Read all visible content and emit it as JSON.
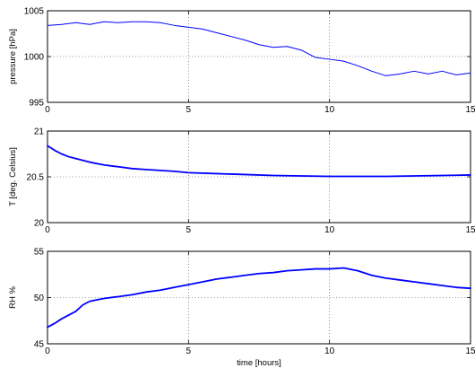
{
  "chart_data": [
    {
      "type": "line",
      "title": "",
      "xlabel": "",
      "ylabel": "pressure [hPa]",
      "xlim": [
        0,
        15
      ],
      "ylim": [
        995,
        1005
      ],
      "xticks": [
        "0",
        "5",
        "10",
        "15"
      ],
      "yticks": [
        "995",
        "1000",
        "1005"
      ],
      "grid": true,
      "color": "#0000ff",
      "series": [
        {
          "x": [
            0,
            0.5,
            1,
            1.5,
            2,
            2.5,
            3,
            3.5,
            4,
            4.5,
            5,
            5.5,
            6,
            6.5,
            7,
            7.5,
            8,
            8.5,
            9,
            9.5,
            10,
            10.5,
            11,
            11.5,
            12,
            12.5,
            13,
            13.5,
            14,
            14.5,
            15
          ],
          "y": [
            1003.4,
            1003.5,
            1003.7,
            1003.5,
            1003.8,
            1003.7,
            1003.8,
            1003.8,
            1003.7,
            1003.4,
            1003.2,
            1003.0,
            1002.6,
            1002.2,
            1001.8,
            1001.3,
            1001.0,
            1001.1,
            1000.7,
            999.9,
            999.7,
            999.5,
            999.0,
            998.4,
            997.9,
            998.1,
            998.4,
            998.1,
            998.4,
            998.0,
            998.2
          ]
        }
      ]
    },
    {
      "type": "line",
      "title": "",
      "xlabel": "",
      "ylabel": "T [deg. Celsius]",
      "xlim": [
        0,
        15
      ],
      "ylim": [
        20,
        21
      ],
      "xticks": [
        "0",
        "5",
        "10",
        "15"
      ],
      "yticks": [
        "20",
        "20.5",
        "21"
      ],
      "grid": true,
      "color": "#0000ff",
      "series": [
        {
          "x": [
            0,
            0.25,
            0.5,
            0.75,
            1,
            1.5,
            2,
            2.5,
            3,
            3.5,
            4,
            4.5,
            5,
            6,
            7,
            8,
            9,
            10,
            11,
            12,
            13,
            14,
            15
          ],
          "y": [
            20.84,
            20.79,
            20.75,
            20.72,
            20.7,
            20.66,
            20.63,
            20.61,
            20.59,
            20.58,
            20.57,
            20.56,
            20.545,
            20.535,
            20.525,
            20.515,
            20.51,
            20.505,
            20.505,
            20.505,
            20.51,
            20.515,
            20.52
          ]
        }
      ]
    },
    {
      "type": "line",
      "title": "",
      "xlabel": "time [hours]",
      "ylabel": "RH %",
      "xlim": [
        0,
        15
      ],
      "ylim": [
        45,
        55
      ],
      "xticks": [
        "0",
        "5",
        "10",
        "15"
      ],
      "yticks": [
        "45",
        "50",
        "55"
      ],
      "grid": true,
      "color": "#0000ff",
      "series": [
        {
          "x": [
            0,
            0.25,
            0.5,
            1,
            1.25,
            1.5,
            2,
            2.5,
            3,
            3.5,
            4,
            4.5,
            5,
            5.5,
            6,
            6.5,
            7,
            7.5,
            8,
            8.5,
            9,
            9.5,
            10,
            10.5,
            11,
            11.5,
            12,
            12.5,
            13,
            13.5,
            14,
            14.5,
            15
          ],
          "y": [
            46.8,
            47.2,
            47.7,
            48.5,
            49.2,
            49.6,
            49.9,
            50.1,
            50.3,
            50.6,
            50.8,
            51.1,
            51.4,
            51.7,
            52.0,
            52.2,
            52.4,
            52.6,
            52.7,
            52.9,
            53.0,
            53.1,
            53.1,
            53.2,
            52.9,
            52.4,
            52.1,
            51.9,
            51.7,
            51.5,
            51.3,
            51.1,
            51.0
          ]
        }
      ]
    }
  ]
}
